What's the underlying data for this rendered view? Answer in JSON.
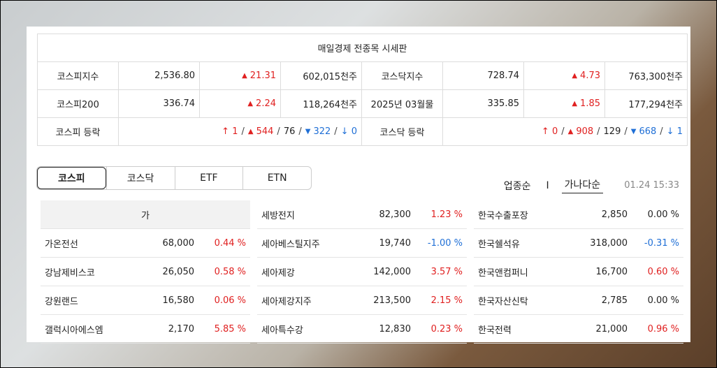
{
  "board": {
    "title": "매일경제 전종목 시세판",
    "rows": [
      {
        "left_label": "코스피지수",
        "left_value": "2,536.80",
        "left_change": "21.31",
        "left_volume": "602,015천주",
        "right_label": "코스닥지수",
        "right_value": "728.74",
        "right_change": "4.73",
        "right_volume": "763,300천주"
      },
      {
        "left_label": "코스피200",
        "left_value": "336.74",
        "left_change": "2.24",
        "left_volume": "118,264천주",
        "right_label": "2025년 03월물",
        "right_value": "335.85",
        "right_change": "1.85",
        "right_volume": "177,294천주"
      }
    ],
    "breadth": {
      "kospi_label": "코스피 등락",
      "kospi": {
        "upper": "1",
        "up": "544",
        "flat": "76",
        "down": "322",
        "lower": "0"
      },
      "kosdaq_label": "코스닥 등락",
      "kosdaq": {
        "upper": "0",
        "up": "908",
        "flat": "129",
        "down": "668",
        "lower": "1"
      }
    }
  },
  "tabs": [
    "코스피",
    "코스닥",
    "ETF",
    "ETN"
  ],
  "sort": {
    "option1": "업종순",
    "divider": "I",
    "option2": "가나다순",
    "time": "01.24 15:33"
  },
  "columns": [
    {
      "header": "가",
      "rows": [
        {
          "name": "가온전선",
          "price": "68,000",
          "rate": "0.44 %",
          "dir": "up"
        },
        {
          "name": "강남제비스코",
          "price": "26,050",
          "rate": "0.58 %",
          "dir": "up"
        },
        {
          "name": "강원랜드",
          "price": "16,580",
          "rate": "0.06 %",
          "dir": "up"
        },
        {
          "name": "갤럭시아에스엠",
          "price": "2,170",
          "rate": "5.85 %",
          "dir": "up"
        }
      ]
    },
    {
      "rows": [
        {
          "name": "세방전지",
          "price": "82,300",
          "rate": "1.23 %",
          "dir": "up"
        },
        {
          "name": "세아베스틸지주",
          "price": "19,740",
          "rate": "-1.00 %",
          "dir": "down"
        },
        {
          "name": "세아제강",
          "price": "142,000",
          "rate": "3.57 %",
          "dir": "up"
        },
        {
          "name": "세아제강지주",
          "price": "213,500",
          "rate": "2.15 %",
          "dir": "up"
        },
        {
          "name": "세아특수강",
          "price": "12,830",
          "rate": "0.23 %",
          "dir": "up"
        }
      ]
    },
    {
      "rows": [
        {
          "name": "한국수출포장",
          "price": "2,850",
          "rate": "0.00 %",
          "dir": "flat"
        },
        {
          "name": "한국쉘석유",
          "price": "318,000",
          "rate": "-0.31 %",
          "dir": "down"
        },
        {
          "name": "한국앤컴퍼니",
          "price": "16,700",
          "rate": "0.60 %",
          "dir": "up"
        },
        {
          "name": "한국자산신탁",
          "price": "2,785",
          "rate": "0.00 %",
          "dir": "flat"
        },
        {
          "name": "한국전력",
          "price": "21,000",
          "rate": "0.96 %",
          "dir": "up"
        }
      ]
    }
  ],
  "colors": {
    "up": "#e02020",
    "down": "#1f6fd6",
    "flat": "#222222"
  }
}
